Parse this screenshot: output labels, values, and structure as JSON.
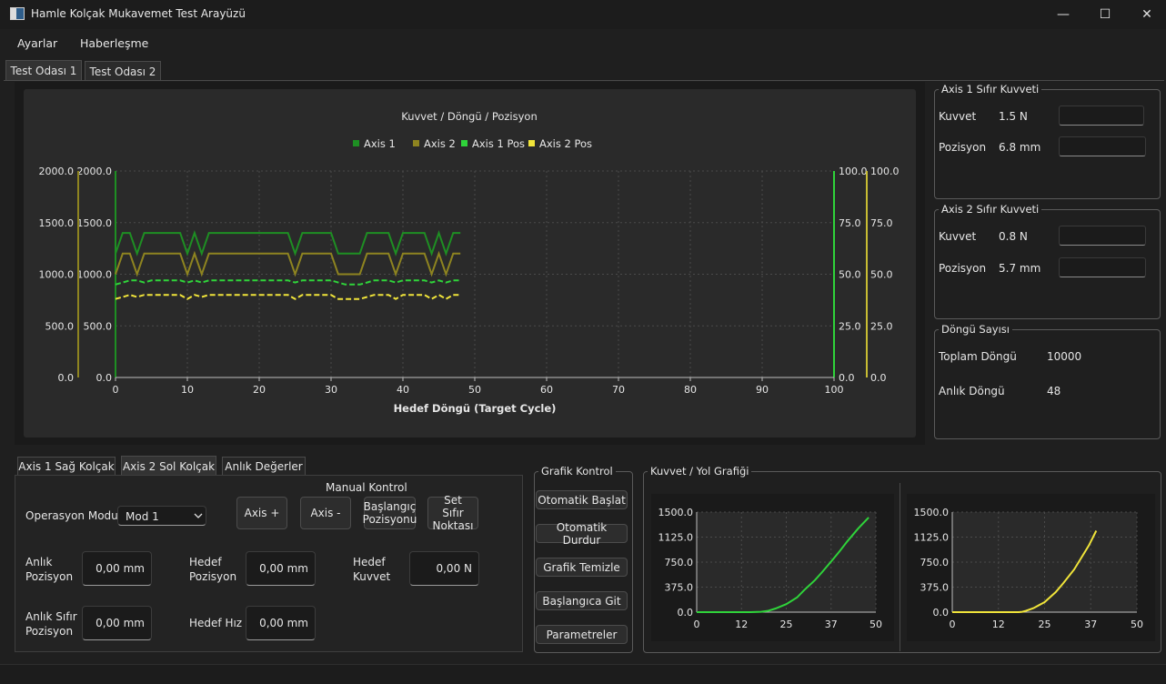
{
  "window": {
    "title": "Hamle Kolçak Mukavemet Test Arayüzü",
    "minimize": "—",
    "maximize": "☐",
    "close": "✕"
  },
  "menu": {
    "items": [
      "Ayarlar",
      "Haberleşme"
    ]
  },
  "tabs": {
    "items": [
      "Test Odası 1",
      "Test Odası 2"
    ],
    "active": 0
  },
  "main_chart": {
    "title": "Kuvvet / Döngü / Pozisyon",
    "xlabel": "Hedef Döngü (Target Cycle)",
    "legend": [
      "Axis 1",
      "Axis 2",
      "Axis 1 Pos",
      "Axis 2 Pos"
    ]
  },
  "chart_data": [
    {
      "type": "line",
      "title": "Kuvvet / Döngü / Pozisyon",
      "xlabel": "Hedef Döngü (Target Cycle)",
      "xlim": [
        0,
        100
      ],
      "xticks": [
        "0",
        "10",
        "20",
        "30",
        "40",
        "50",
        "60",
        "70",
        "80",
        "90",
        "100"
      ],
      "ylim_left": [
        0,
        2000
      ],
      "yticks_left": [
        "0.0",
        "500.0",
        "1000.0",
        "1500.0",
        "2000.0"
      ],
      "ylim_right": [
        0,
        100
      ],
      "yticks_right": [
        "0.0",
        "25.0",
        "50.0",
        "75.0",
        "100.0"
      ],
      "grid": true,
      "legend_position": "top",
      "x": [
        0,
        1,
        2,
        3,
        4,
        5,
        6,
        7,
        8,
        9,
        10,
        11,
        12,
        13,
        14,
        15,
        16,
        17,
        18,
        19,
        20,
        21,
        22,
        23,
        24,
        25,
        26,
        27,
        28,
        29,
        30,
        31,
        32,
        33,
        34,
        35,
        36,
        37,
        38,
        39,
        40,
        41,
        42,
        43,
        44,
        45,
        46,
        47,
        48
      ],
      "series": [
        {
          "name": "Axis 1",
          "axis": "left",
          "color": "#1e8f23",
          "style": "solid",
          "values": [
            1200,
            1400,
            1400,
            1200,
            1400,
            1400,
            1400,
            1400,
            1400,
            1400,
            1200,
            1400,
            1200,
            1400,
            1400,
            1400,
            1400,
            1400,
            1400,
            1400,
            1400,
            1400,
            1400,
            1400,
            1400,
            1200,
            1400,
            1400,
            1400,
            1400,
            1400,
            1200,
            1200,
            1200,
            1200,
            1400,
            1400,
            1400,
            1400,
            1200,
            1400,
            1400,
            1400,
            1400,
            1200,
            1400,
            1200,
            1400,
            1400
          ]
        },
        {
          "name": "Axis 2",
          "axis": "left",
          "color": "#8e8420",
          "style": "solid",
          "values": [
            1000,
            1200,
            1200,
            1000,
            1200,
            1200,
            1200,
            1200,
            1200,
            1200,
            1000,
            1200,
            1000,
            1200,
            1200,
            1200,
            1200,
            1200,
            1200,
            1200,
            1200,
            1200,
            1200,
            1200,
            1200,
            1000,
            1200,
            1200,
            1200,
            1200,
            1200,
            1000,
            1000,
            1000,
            1000,
            1200,
            1200,
            1200,
            1200,
            1000,
            1200,
            1200,
            1200,
            1200,
            1000,
            1200,
            1000,
            1200,
            1200
          ]
        },
        {
          "name": "Axis 1 Pos",
          "axis": "right",
          "color": "#2fd33a",
          "style": "dashed",
          "values": [
            45,
            46,
            47,
            47,
            46,
            47,
            47,
            47,
            47,
            47,
            46,
            47,
            46,
            47,
            47,
            47,
            47,
            47,
            47,
            47,
            47,
            47,
            47,
            47,
            47,
            46,
            47,
            47,
            47,
            47,
            47,
            46,
            45,
            45,
            45,
            46,
            47,
            47,
            47,
            46,
            47,
            47,
            47,
            47,
            46,
            47,
            46,
            47,
            47
          ]
        },
        {
          "name": "Axis 2 Pos",
          "axis": "right",
          "color": "#f0e43a",
          "style": "dashed",
          "values": [
            38,
            39,
            40,
            39,
            40,
            40,
            40,
            40,
            40,
            40,
            38,
            40,
            39,
            40,
            40,
            40,
            40,
            40,
            40,
            40,
            40,
            40,
            40,
            40,
            40,
            38,
            40,
            40,
            40,
            40,
            40,
            38,
            38,
            38,
            38,
            39,
            40,
            40,
            40,
            38,
            40,
            40,
            40,
            40,
            38,
            40,
            38,
            40,
            40
          ]
        }
      ]
    },
    {
      "type": "line",
      "xlim": [
        0,
        50
      ],
      "xticks": [
        "0",
        "12",
        "25",
        "37",
        "50"
      ],
      "ylim": [
        0,
        1500
      ],
      "yticks": [
        "0.0",
        "375.0",
        "750.0",
        "1125.0",
        "1500.0"
      ],
      "grid": true,
      "series": [
        {
          "color": "#2fd33a",
          "x": [
            0,
            5,
            10,
            15,
            18,
            20,
            22,
            25,
            28,
            30,
            33,
            35,
            38,
            40,
            42,
            45,
            48
          ],
          "values": [
            0,
            0,
            0,
            0,
            5,
            20,
            55,
            120,
            220,
            330,
            480,
            600,
            790,
            920,
            1060,
            1250,
            1420
          ]
        }
      ]
    },
    {
      "type": "line",
      "xlim": [
        0,
        50
      ],
      "xticks": [
        "0",
        "12",
        "25",
        "37",
        "50"
      ],
      "ylim": [
        0,
        1500
      ],
      "yticks": [
        "0.0",
        "375.0",
        "750.0",
        "1125.0",
        "1500.0"
      ],
      "grid": true,
      "series": [
        {
          "color": "#f0e43a",
          "x": [
            0,
            5,
            10,
            15,
            18,
            19,
            20,
            22,
            25,
            28,
            30,
            33,
            35,
            37,
            39
          ],
          "values": [
            0,
            0,
            0,
            0,
            0,
            5,
            20,
            60,
            150,
            300,
            430,
            640,
            820,
            1000,
            1220
          ]
        }
      ]
    }
  ],
  "axis1_zero": {
    "title": "Axis 1 Sıfır Kuvveti",
    "kuvvet_label": "Kuvvet",
    "kuvvet_value": "1.5 N",
    "pozisyon_label": "Pozisyon",
    "pozisyon_value": "6.8 mm"
  },
  "axis2_zero": {
    "title": "Axis 2 Sıfır Kuvveti",
    "kuvvet_label": "Kuvvet",
    "kuvvet_value": "0.8 N",
    "pozisyon_label": "Pozisyon",
    "pozisyon_value": "5.7 mm"
  },
  "cycles": {
    "title": "Döngü Sayısı",
    "toplam_label": "Toplam Döngü",
    "toplam_value": "10000",
    "anlik_label": "Anlık Döngü",
    "anlik_value": "48"
  },
  "bottom_tabs": {
    "items": [
      "Axis 1 Sağ Kolçak",
      "Axis 2 Sol Kolçak",
      "Anlık Değerler"
    ],
    "active": 1
  },
  "manual": {
    "title": "Manual Kontrol",
    "op_mode_label": "Operasyon Modu:",
    "op_mode_value": "Mod 1",
    "axis_plus": "Axis +",
    "axis_minus": "Axis -",
    "start_pos": "Başlangıç Pozisyonu",
    "set_zero": "Set Sıfır Noktası",
    "anlik_poz_label": "Anlık Pozisyon",
    "anlik_poz_value": "0,00 mm",
    "hedef_poz_label": "Hedef Pozisyon",
    "hedef_poz_value": "0,00 mm",
    "hedef_kuvvet_label": "Hedef Kuvvet",
    "hedef_kuvvet_value": "0,00 N",
    "anlik_sifir_label": "Anlık Sıfır Pozisyon",
    "anlik_sifir_value": "0,00 mm",
    "hedef_hiz_label": "Hedef Hız",
    "hedef_hiz_value": "0,00 mm"
  },
  "graph_control": {
    "title": "Grafik Kontrol",
    "buttons": [
      "Otomatik Başlat",
      "Otomatik Durdur",
      "Grafik Temizle",
      "Başlangıca Git",
      "Parametreler"
    ]
  },
  "force_path": {
    "title": "Kuvvet / Yol Grafiği"
  }
}
